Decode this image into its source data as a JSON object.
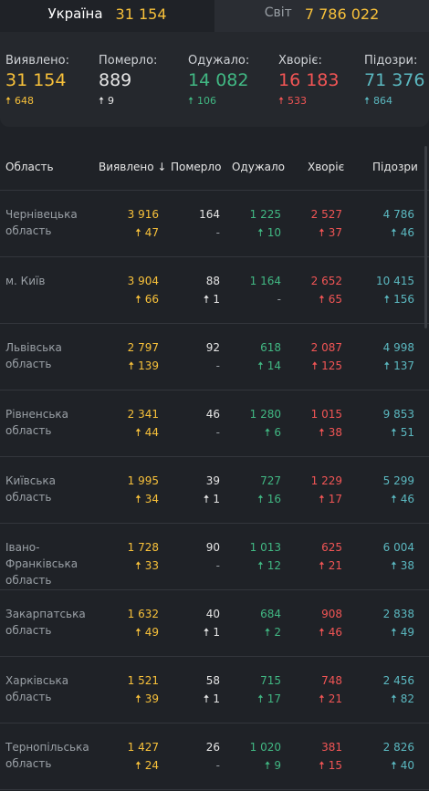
{
  "tabs": [
    {
      "label": "Україна",
      "value": "31 154"
    },
    {
      "label": "Світ",
      "value": "7 786 022"
    }
  ],
  "summary": {
    "detected": {
      "title": "Виявлено:",
      "value": "31 154",
      "delta": "648"
    },
    "died": {
      "title": "Померло:",
      "value": "889",
      "delta": "9"
    },
    "recovered": {
      "title": "Одужало:",
      "value": "14 082",
      "delta": "106"
    },
    "sick": {
      "title": "Хворіє:",
      "value": "16 183",
      "delta": "533"
    },
    "suspected": {
      "title": "Підозри:",
      "value": "71 376",
      "delta": "864"
    }
  },
  "table": {
    "headers": {
      "region": "Область",
      "detected": "Виявлено",
      "sort_icon": "arrow-down-icon",
      "died": "Померло",
      "recovered": "Одужало",
      "sick": "Хворіє",
      "suspected": "Підозри"
    },
    "rows": [
      {
        "region": "Чернівецька область",
        "detected": "3 916",
        "detected_d": "47",
        "died": "164",
        "died_d": "-",
        "recovered": "1 225",
        "recovered_d": "10",
        "sick": "2 527",
        "sick_d": "37",
        "suspected": "4 786",
        "suspected_d": "46"
      },
      {
        "region": "м. Київ",
        "detected": "3 904",
        "detected_d": "66",
        "died": "88",
        "died_d": "1",
        "recovered": "1 164",
        "recovered_d": "-",
        "sick": "2 652",
        "sick_d": "65",
        "suspected": "10 415",
        "suspected_d": "156"
      },
      {
        "region": "Львівська область",
        "detected": "2 797",
        "detected_d": "139",
        "died": "92",
        "died_d": "-",
        "recovered": "618",
        "recovered_d": "14",
        "sick": "2 087",
        "sick_d": "125",
        "suspected": "4 998",
        "suspected_d": "137"
      },
      {
        "region": "Рівненська область",
        "detected": "2 341",
        "detected_d": "44",
        "died": "46",
        "died_d": "-",
        "recovered": "1 280",
        "recovered_d": "6",
        "sick": "1 015",
        "sick_d": "38",
        "suspected": "9 853",
        "suspected_d": "51"
      },
      {
        "region": "Київська область",
        "detected": "1 995",
        "detected_d": "34",
        "died": "39",
        "died_d": "1",
        "recovered": "727",
        "recovered_d": "16",
        "sick": "1 229",
        "sick_d": "17",
        "suspected": "5 299",
        "suspected_d": "46"
      },
      {
        "region": "Івано-Франківська область",
        "detected": "1 728",
        "detected_d": "33",
        "died": "90",
        "died_d": "-",
        "recovered": "1 013",
        "recovered_d": "12",
        "sick": "625",
        "sick_d": "21",
        "suspected": "6 004",
        "suspected_d": "38"
      },
      {
        "region": "Закарпатська область",
        "detected": "1 632",
        "detected_d": "49",
        "died": "40",
        "died_d": "1",
        "recovered": "684",
        "recovered_d": "2",
        "sick": "908",
        "sick_d": "46",
        "suspected": "2 838",
        "suspected_d": "49"
      },
      {
        "region": "Харківська область",
        "detected": "1 521",
        "detected_d": "39",
        "died": "58",
        "died_d": "1",
        "recovered": "715",
        "recovered_d": "17",
        "sick": "748",
        "sick_d": "21",
        "suspected": "2 456",
        "suspected_d": "82"
      },
      {
        "region": "Тернопільська область",
        "detected": "1 427",
        "detected_d": "24",
        "died": "26",
        "died_d": "-",
        "recovered": "1 020",
        "recovered_d": "9",
        "sick": "381",
        "sick_d": "15",
        "suspected": "2 826",
        "suspected_d": "40"
      }
    ]
  },
  "colors": {
    "detected": "#f8c13a",
    "recovered": "#41b883",
    "sick": "#f25555",
    "suspected": "#5bb8c0"
  }
}
